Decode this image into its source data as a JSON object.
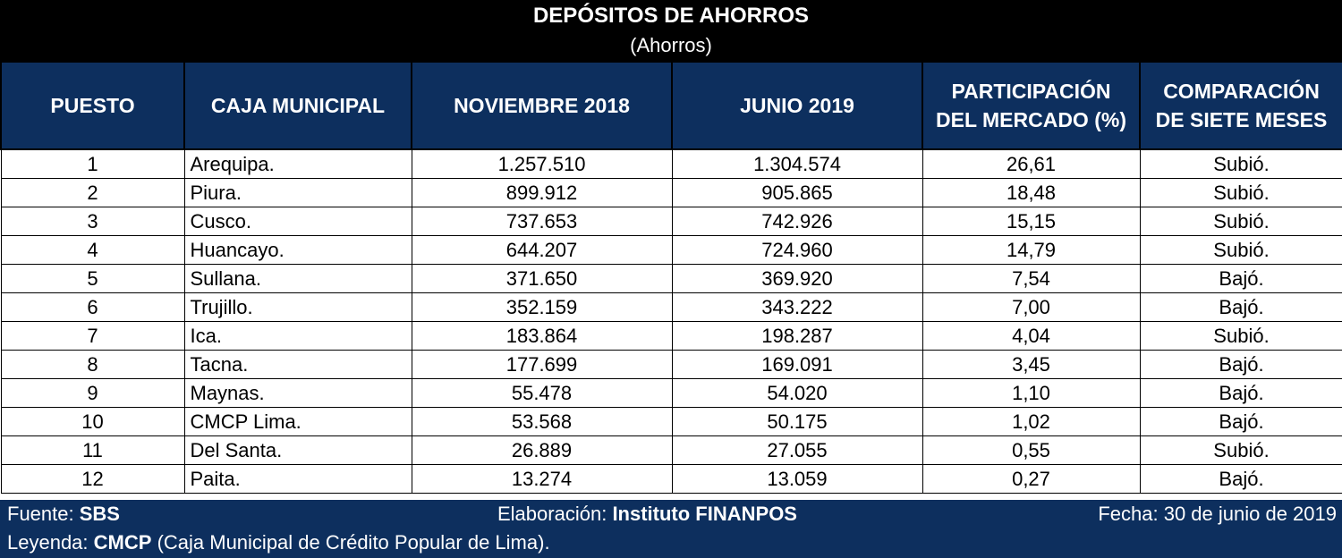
{
  "title": "DEPÓSITOS DE AHORROS",
  "subtitle": "(Ahorros)",
  "headers": {
    "puesto": "PUESTO",
    "caja": "CAJA MUNICIPAL",
    "nov": "NOVIEMBRE 2018",
    "jun": "JUNIO 2019",
    "part_line1": "PARTICIPACIÓN",
    "part_line2": "DEL MERCADO (%)",
    "comp_line1": "COMPARACIÓN",
    "comp_line2": "DE SIETE MESES"
  },
  "rows": [
    {
      "puesto": "1",
      "caja": "Arequipa.",
      "nov": "1.257.510",
      "jun": "1.304.574",
      "part": "26,61",
      "comp": "Subió."
    },
    {
      "puesto": "2",
      "caja": "Piura.",
      "nov": "899.912",
      "jun": "905.865",
      "part": "18,48",
      "comp": "Subió."
    },
    {
      "puesto": "3",
      "caja": "Cusco.",
      "nov": "737.653",
      "jun": "742.926",
      "part": "15,15",
      "comp": "Subió."
    },
    {
      "puesto": "4",
      "caja": "Huancayo.",
      "nov": "644.207",
      "jun": "724.960",
      "part": "14,79",
      "comp": "Subió."
    },
    {
      "puesto": "5",
      "caja": "Sullana.",
      "nov": "371.650",
      "jun": "369.920",
      "part": "7,54",
      "comp": "Bajó."
    },
    {
      "puesto": "6",
      "caja": "Trujillo.",
      "nov": "352.159",
      "jun": "343.222",
      "part": "7,00",
      "comp": "Bajó."
    },
    {
      "puesto": "7",
      "caja": "Ica.",
      "nov": "183.864",
      "jun": "198.287",
      "part": "4,04",
      "comp": "Subió."
    },
    {
      "puesto": "8",
      "caja": "Tacna.",
      "nov": "177.699",
      "jun": "169.091",
      "part": "3,45",
      "comp": "Bajó."
    },
    {
      "puesto": "9",
      "caja": "Maynas.",
      "nov": "55.478",
      "jun": "54.020",
      "part": "1,10",
      "comp": "Bajó."
    },
    {
      "puesto": "10",
      "caja": "CMCP Lima.",
      "nov": "53.568",
      "jun": "50.175",
      "part": "1,02",
      "comp": "Bajó."
    },
    {
      "puesto": "11",
      "caja": "Del Santa.",
      "nov": "26.889",
      "jun": "27.055",
      "part": "0,55",
      "comp": "Subió."
    },
    {
      "puesto": "12",
      "caja": "Paita.",
      "nov": "13.274",
      "jun": "13.059",
      "part": "0,27",
      "comp": "Bajó."
    }
  ],
  "footer": {
    "fuente_label": "Fuente:",
    "fuente_value": "SBS",
    "elab_label": "Elaboración:",
    "elab_value": "Instituto FINANPOS",
    "fecha": "Fecha: 30 de junio de 2019",
    "leyenda_label": "Leyenda:",
    "leyenda_value": "CMCP",
    "leyenda_desc": "(Caja Municipal de Crédito Popular de Lima)."
  }
}
